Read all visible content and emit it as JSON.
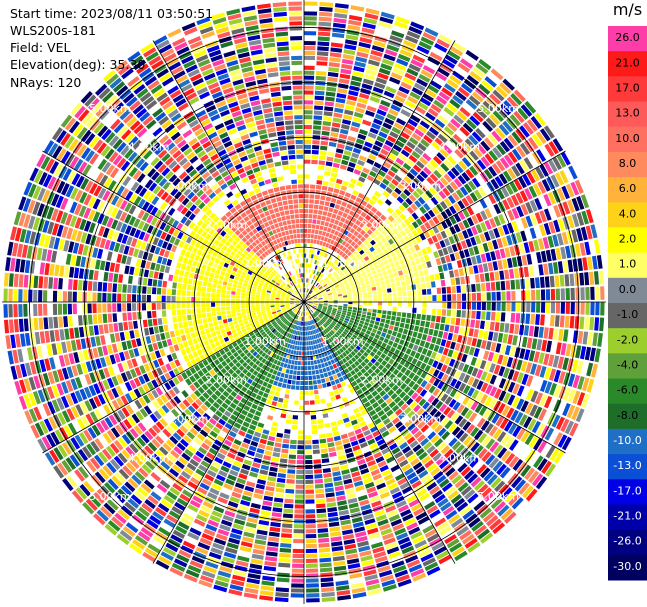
{
  "info": {
    "start_time": "Start time: 2023/08/11 03:50:51",
    "instrument": "WLS200s-181",
    "field": "Field: VEL",
    "elevation": "Elevation(deg): 35.30",
    "nrays": "NRays: 120"
  },
  "colorbar": {
    "unit": "m/s",
    "levels": [
      {
        "label": "26.0",
        "color": "#ff3da8"
      },
      {
        "label": "21.0",
        "color": "#ff1a1a"
      },
      {
        "label": "17.0",
        "color": "#ff3a3a"
      },
      {
        "label": "13.0",
        "color": "#ff5a5a"
      },
      {
        "label": "10.0",
        "color": "#ff6f5f"
      },
      {
        "label": "8.0",
        "color": "#ff8a5e"
      },
      {
        "label": "6.0",
        "color": "#ffb33a"
      },
      {
        "label": "4.0",
        "color": "#ffd21a"
      },
      {
        "label": "2.0",
        "color": "#ffff00"
      },
      {
        "label": "1.0",
        "color": "#ffff66"
      },
      {
        "label": "0.0",
        "color": "#7f8a96"
      },
      {
        "label": "-1.0",
        "color": "#666666"
      },
      {
        "label": "-2.0",
        "color": "#9ccf2e"
      },
      {
        "label": "-4.0",
        "color": "#5fa03a"
      },
      {
        "label": "-6.0",
        "color": "#2a8a2a"
      },
      {
        "label": "-8.0",
        "color": "#1e6e2a"
      },
      {
        "label": "-10.0",
        "color": "#1f6fc6"
      },
      {
        "label": "-13.0",
        "color": "#0b4fd6"
      },
      {
        "label": "-17.0",
        "color": "#0000e6"
      },
      {
        "label": "-21.0",
        "color": "#0000a8"
      },
      {
        "label": "-26.0",
        "color": "#000080"
      },
      {
        "label": "-30.0",
        "color": "#000060"
      }
    ]
  },
  "chart_data": {
    "type": "heatmap",
    "projection": "polar-ppi",
    "field": "VEL",
    "units": "m/s",
    "nrays": 120,
    "range_km": [
      0,
      5.5
    ],
    "range_rings_km": [
      1.0,
      2.0,
      3.0,
      4.0,
      5.0
    ],
    "ring_labels": [
      "1.00km",
      "2.00km",
      "3.00km",
      "4.00km",
      "5.00km"
    ],
    "spokes_deg": [
      0,
      30,
      60,
      90,
      120,
      150,
      180,
      210,
      240,
      270,
      300,
      330
    ],
    "sectors": [
      {
        "azimuth_deg": [
          315,
          45
        ],
        "range_km": [
          1.0,
          2.1
        ],
        "velocity_ms": 9.0,
        "description": "north"
      },
      {
        "azimuth_deg": [
          240,
          315
        ],
        "range_km": [
          0.2,
          2.4
        ],
        "velocity_ms": 2.0,
        "description": "west-northwest"
      },
      {
        "azimuth_deg": [
          45,
          90
        ],
        "range_km": [
          0.2,
          2.3
        ],
        "velocity_ms": 1.0,
        "description": "east-northeast"
      },
      {
        "azimuth_deg": [
          95,
          150
        ],
        "range_km": [
          0.2,
          2.6
        ],
        "velocity_ms": -6.0,
        "description": "southeast"
      },
      {
        "azimuth_deg": [
          150,
          200
        ],
        "range_km": [
          0.3,
          1.6
        ],
        "velocity_ms": -10.0,
        "description": "south"
      },
      {
        "azimuth_deg": [
          200,
          240
        ],
        "range_km": [
          0.2,
          2.6
        ],
        "velocity_ms": -6.0,
        "description": "southwest"
      }
    ],
    "far_range_km": [
      2.5,
      5.5
    ],
    "far_range_note": "noisy, mixed velocities"
  }
}
